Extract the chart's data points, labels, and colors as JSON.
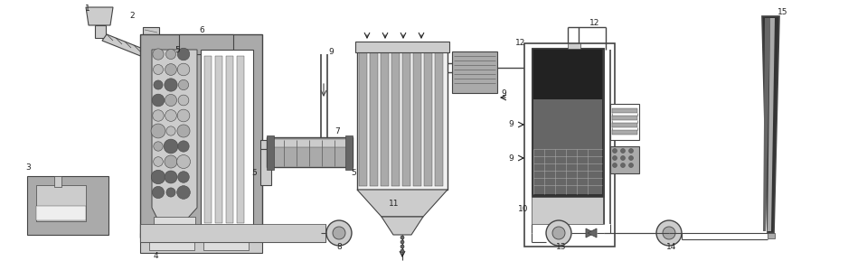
{
  "bg_color": "#ffffff",
  "lc": "#444444",
  "dc": "#222222",
  "lgray": "#cccccc",
  "mgray": "#aaaaaa",
  "dgray": "#666666",
  "vdgray": "#333333",
  "black": "#111111",
  "figsize": [
    9.59,
    2.89
  ],
  "dpi": 100
}
